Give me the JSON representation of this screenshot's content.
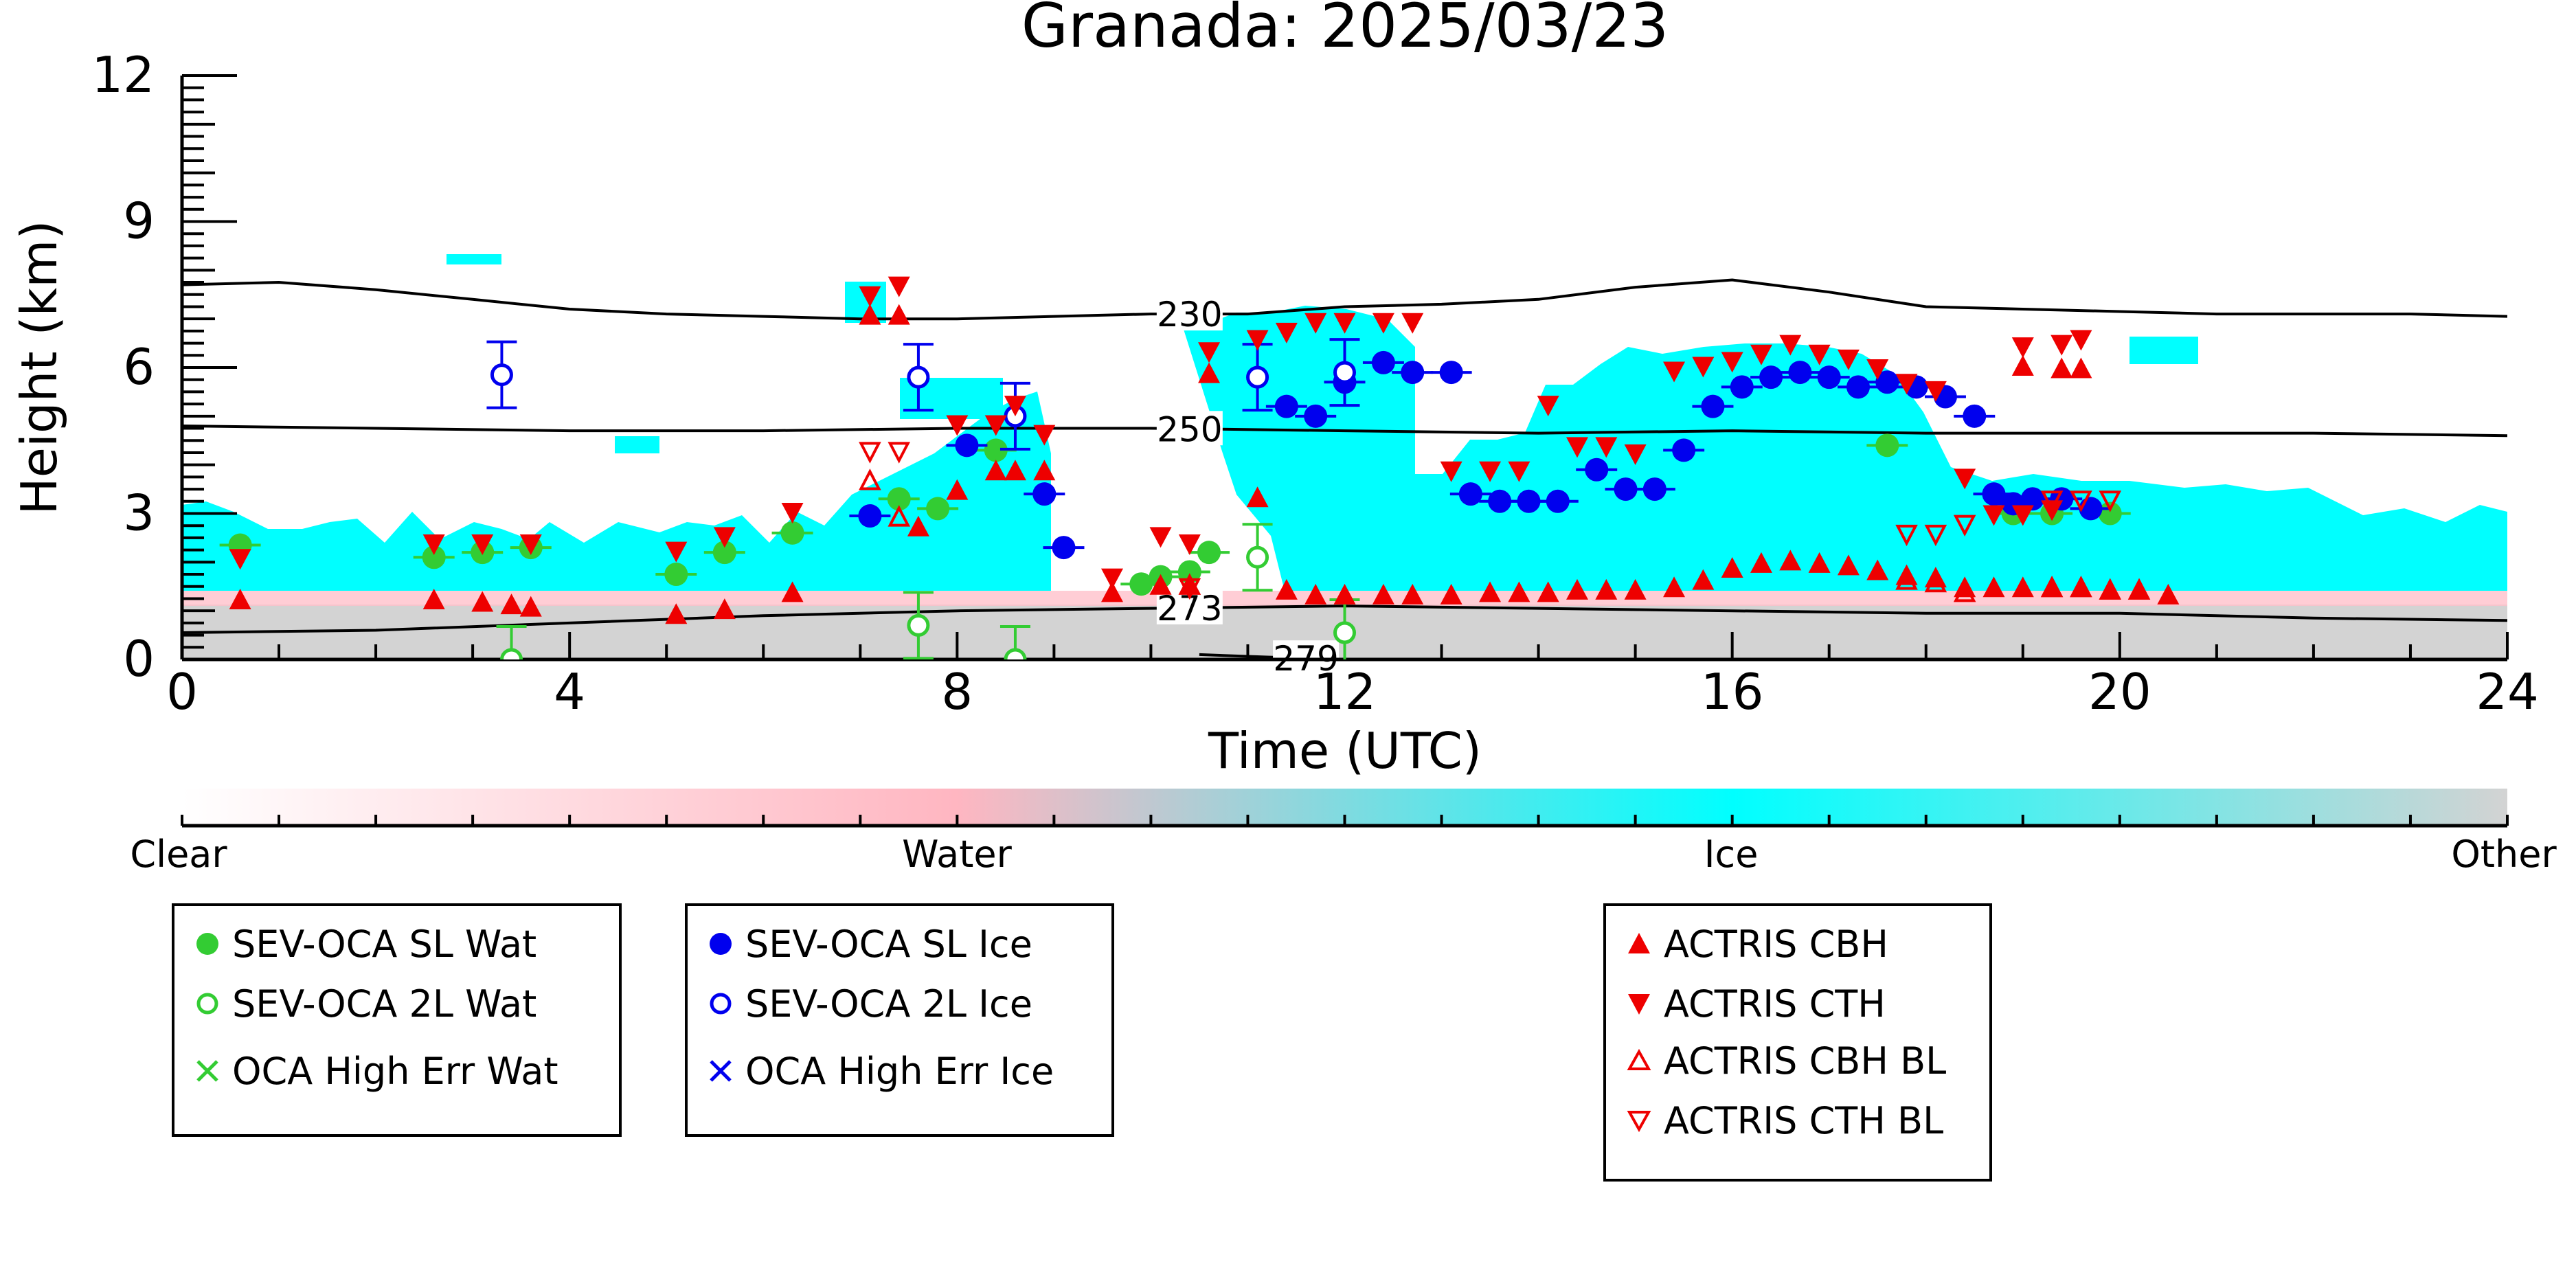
{
  "chart_data": {
    "type": "scatter",
    "title": "Granada: 2025/03/23",
    "xlabel": "Time (UTC)",
    "ylabel": "Height (km)",
    "xlim": [
      0,
      24
    ],
    "ylim": [
      0,
      12
    ],
    "x_ticks": [
      0,
      4,
      8,
      12,
      16,
      20,
      24
    ],
    "x_tick_labels": [
      "0",
      "4",
      "8",
      "12",
      "16",
      "20",
      "24"
    ],
    "y_ticks": [
      0,
      3,
      6,
      9,
      12
    ],
    "y_tick_labels": [
      "0",
      "3",
      "6",
      "9",
      "12"
    ],
    "grid": false,
    "colorbar": {
      "labels": [
        "Clear",
        "Water",
        "Ice",
        "Other"
      ],
      "colors": [
        "#ffffff",
        "#ffb6c1",
        "#00ffff",
        "#d3d3d3"
      ]
    },
    "contours": [
      {
        "label": "230",
        "label_x": 10.4,
        "points": [
          [
            0,
            7.7
          ],
          [
            1,
            7.75
          ],
          [
            2,
            7.6
          ],
          [
            3,
            7.4
          ],
          [
            4,
            7.2
          ],
          [
            5,
            7.1
          ],
          [
            6,
            7.05
          ],
          [
            7,
            7.0
          ],
          [
            8,
            7.0
          ],
          [
            9,
            7.05
          ],
          [
            10,
            7.1
          ],
          [
            11,
            7.1
          ],
          [
            12,
            7.25
          ],
          [
            13,
            7.3
          ],
          [
            14,
            7.4
          ],
          [
            15,
            7.65
          ],
          [
            16,
            7.8
          ],
          [
            17,
            7.55
          ],
          [
            18,
            7.25
          ],
          [
            19,
            7.2
          ],
          [
            20,
            7.15
          ],
          [
            21,
            7.1
          ],
          [
            22,
            7.1
          ],
          [
            23,
            7.1
          ],
          [
            24,
            7.05
          ]
        ]
      },
      {
        "label": "250",
        "label_x": 10.4,
        "points": [
          [
            0,
            4.8
          ],
          [
            2,
            4.75
          ],
          [
            4,
            4.7
          ],
          [
            6,
            4.7
          ],
          [
            8,
            4.75
          ],
          [
            10,
            4.75
          ],
          [
            12,
            4.7
          ],
          [
            14,
            4.65
          ],
          [
            16,
            4.7
          ],
          [
            18,
            4.65
          ],
          [
            20,
            4.65
          ],
          [
            22,
            4.65
          ],
          [
            24,
            4.6
          ]
        ]
      },
      {
        "label": "273",
        "label_x": 10.4,
        "points": [
          [
            0,
            0.55
          ],
          [
            2,
            0.6
          ],
          [
            4,
            0.75
          ],
          [
            6,
            0.9
          ],
          [
            8,
            1.0
          ],
          [
            10,
            1.05
          ],
          [
            12,
            1.1
          ],
          [
            14,
            1.05
          ],
          [
            16,
            1.0
          ],
          [
            18,
            0.95
          ],
          [
            20,
            0.95
          ],
          [
            22,
            0.85
          ],
          [
            24,
            0.8
          ]
        ]
      },
      {
        "label": "279",
        "label_x": 11.6,
        "points": [
          [
            10.5,
            0.1
          ],
          [
            11.2,
            0.05
          ],
          [
            12,
            0.0
          ]
        ]
      }
    ],
    "series": [
      {
        "name": "SEV-OCA SL Wat",
        "marker": "filled-circle",
        "color": "#33cc33",
        "points": [
          [
            0.6,
            2.35
          ],
          [
            2.6,
            2.1
          ],
          [
            3.1,
            2.2
          ],
          [
            3.6,
            2.3
          ],
          [
            5.1,
            1.75
          ],
          [
            5.6,
            2.2
          ],
          [
            6.3,
            2.6
          ],
          [
            7.4,
            3.3
          ],
          [
            7.8,
            3.1
          ],
          [
            8.4,
            4.3
          ],
          [
            9.9,
            1.55
          ],
          [
            10.1,
            1.7
          ],
          [
            10.4,
            1.8
          ],
          [
            10.6,
            2.2
          ],
          [
            17.6,
            4.4
          ],
          [
            18.9,
            3.0
          ],
          [
            19.3,
            3.0
          ],
          [
            19.9,
            3.0
          ]
        ]
      },
      {
        "name": "SEV-OCA 2L Wat",
        "marker": "open-circle",
        "color": "#33cc33",
        "points": [
          [
            3.4,
            0.0
          ],
          [
            7.6,
            0.7
          ],
          [
            8.6,
            0.0
          ],
          [
            11.1,
            2.1
          ],
          [
            12.0,
            0.55
          ]
        ]
      },
      {
        "name": "OCA High Err Wat",
        "marker": "x",
        "color": "#33cc33",
        "points": []
      },
      {
        "name": "SEV-OCA SL Ice",
        "marker": "filled-circle",
        "color": "#0000ee",
        "points": [
          [
            7.1,
            2.95
          ],
          [
            8.1,
            4.4
          ],
          [
            8.9,
            3.4
          ],
          [
            9.1,
            2.3
          ],
          [
            11.4,
            5.2
          ],
          [
            11.7,
            5.0
          ],
          [
            12.0,
            5.7
          ],
          [
            12.4,
            6.1
          ],
          [
            12.7,
            5.9
          ],
          [
            13.1,
            5.9
          ],
          [
            13.3,
            3.4
          ],
          [
            13.6,
            3.25
          ],
          [
            13.9,
            3.25
          ],
          [
            14.2,
            3.25
          ],
          [
            14.6,
            3.9
          ],
          [
            14.9,
            3.5
          ],
          [
            15.2,
            3.5
          ],
          [
            15.5,
            4.3
          ],
          [
            15.8,
            5.2
          ],
          [
            16.1,
            5.6
          ],
          [
            16.4,
            5.8
          ],
          [
            16.7,
            5.9
          ],
          [
            17.0,
            5.8
          ],
          [
            17.3,
            5.6
          ],
          [
            17.6,
            5.7
          ],
          [
            17.9,
            5.6
          ],
          [
            18.2,
            5.4
          ],
          [
            18.5,
            5.0
          ],
          [
            18.7,
            3.4
          ],
          [
            18.9,
            3.2
          ],
          [
            19.1,
            3.3
          ],
          [
            19.4,
            3.3
          ],
          [
            19.7,
            3.1
          ]
        ]
      },
      {
        "name": "SEV-OCA 2L Ice",
        "marker": "open-circle",
        "color": "#0000ee",
        "points": [
          [
            3.3,
            5.85
          ],
          [
            7.6,
            5.8
          ],
          [
            8.6,
            5.0
          ],
          [
            11.1,
            5.8
          ],
          [
            12.0,
            5.9
          ]
        ]
      },
      {
        "name": "OCA High Err Ice",
        "marker": "x",
        "color": "#0000ee",
        "points": []
      },
      {
        "name": "ACTRIS CBH",
        "marker": "triangle-up",
        "color": "#ee0000",
        "points": [
          [
            0.6,
            1.2
          ],
          [
            2.6,
            1.2
          ],
          [
            3.1,
            1.15
          ],
          [
            3.4,
            1.1
          ],
          [
            3.6,
            1.05
          ],
          [
            5.1,
            0.9
          ],
          [
            5.6,
            1.0
          ],
          [
            6.3,
            1.35
          ],
          [
            7.1,
            7.05
          ],
          [
            7.4,
            7.05
          ],
          [
            7.6,
            2.7
          ],
          [
            8.0,
            3.45
          ],
          [
            8.4,
            3.85
          ],
          [
            8.6,
            3.85
          ],
          [
            8.9,
            3.85
          ],
          [
            9.6,
            1.35
          ],
          [
            10.1,
            1.5
          ],
          [
            10.4,
            1.5
          ],
          [
            10.6,
            5.85
          ],
          [
            11.1,
            3.3
          ],
          [
            11.4,
            1.4
          ],
          [
            11.7,
            1.3
          ],
          [
            12.0,
            1.3
          ],
          [
            12.4,
            1.3
          ],
          [
            12.7,
            1.3
          ],
          [
            13.1,
            1.3
          ],
          [
            13.5,
            1.35
          ],
          [
            13.8,
            1.35
          ],
          [
            14.1,
            1.35
          ],
          [
            14.4,
            1.4
          ],
          [
            14.7,
            1.4
          ],
          [
            15.0,
            1.4
          ],
          [
            15.4,
            1.45
          ],
          [
            15.7,
            1.6
          ],
          [
            16.0,
            1.85
          ],
          [
            16.3,
            1.95
          ],
          [
            16.6,
            2.0
          ],
          [
            16.9,
            1.95
          ],
          [
            17.2,
            1.9
          ],
          [
            17.5,
            1.8
          ],
          [
            17.8,
            1.7
          ],
          [
            18.1,
            1.65
          ],
          [
            18.4,
            1.45
          ],
          [
            18.7,
            1.45
          ],
          [
            19.0,
            1.45
          ],
          [
            19.3,
            1.45
          ],
          [
            19.6,
            1.45
          ],
          [
            19.9,
            1.4
          ],
          [
            20.2,
            1.4
          ],
          [
            20.5,
            1.3
          ],
          [
            19.0,
            6.0
          ],
          [
            19.4,
            5.95
          ],
          [
            19.6,
            5.95
          ]
        ]
      },
      {
        "name": "ACTRIS CTH",
        "marker": "triangle-down",
        "color": "#ee0000",
        "points": [
          [
            0.6,
            2.1
          ],
          [
            2.6,
            2.4
          ],
          [
            3.1,
            2.4
          ],
          [
            3.6,
            2.4
          ],
          [
            5.1,
            2.25
          ],
          [
            5.6,
            2.55
          ],
          [
            6.3,
            3.05
          ],
          [
            7.1,
            7.5
          ],
          [
            7.4,
            7.7
          ],
          [
            8.0,
            4.85
          ],
          [
            8.4,
            4.85
          ],
          [
            8.6,
            5.25
          ],
          [
            8.9,
            4.65
          ],
          [
            9.6,
            1.7
          ],
          [
            10.1,
            2.55
          ],
          [
            10.4,
            2.4
          ],
          [
            10.6,
            6.35
          ],
          [
            11.1,
            6.6
          ],
          [
            11.4,
            6.75
          ],
          [
            11.7,
            6.95
          ],
          [
            12.0,
            6.95
          ],
          [
            12.4,
            6.95
          ],
          [
            12.7,
            6.95
          ],
          [
            13.1,
            3.9
          ],
          [
            13.5,
            3.9
          ],
          [
            13.8,
            3.9
          ],
          [
            14.1,
            5.25
          ],
          [
            14.4,
            4.4
          ],
          [
            14.7,
            4.4
          ],
          [
            15.0,
            4.25
          ],
          [
            15.4,
            5.95
          ],
          [
            15.7,
            6.05
          ],
          [
            16.0,
            6.15
          ],
          [
            16.3,
            6.3
          ],
          [
            16.6,
            6.5
          ],
          [
            16.9,
            6.3
          ],
          [
            17.2,
            6.2
          ],
          [
            17.5,
            6.0
          ],
          [
            17.8,
            5.7
          ],
          [
            18.1,
            5.55
          ],
          [
            18.4,
            3.75
          ],
          [
            18.7,
            3.0
          ],
          [
            19.0,
            3.0
          ],
          [
            19.3,
            3.1
          ],
          [
            19.0,
            6.45
          ],
          [
            19.4,
            6.5
          ],
          [
            19.6,
            6.6
          ]
        ]
      },
      {
        "name": "ACTRIS CBH BL",
        "marker": "open-triangle-up",
        "color": "#ee0000",
        "points": [
          [
            7.1,
            3.65
          ],
          [
            7.4,
            2.9
          ],
          [
            10.4,
            1.5
          ],
          [
            17.8,
            1.6
          ],
          [
            18.1,
            1.55
          ],
          [
            18.4,
            1.35
          ],
          [
            19.3,
            1.45
          ],
          [
            19.6,
            1.45
          ],
          [
            19.9,
            1.4
          ],
          [
            20.2,
            1.4
          ]
        ]
      },
      {
        "name": "ACTRIS CTH BL",
        "marker": "open-triangle-down",
        "color": "#ee0000",
        "points": [
          [
            7.1,
            4.3
          ],
          [
            7.4,
            4.3
          ],
          [
            10.4,
            1.5
          ],
          [
            17.8,
            2.6
          ],
          [
            18.1,
            2.6
          ],
          [
            18.4,
            2.8
          ],
          [
            19.3,
            3.3
          ],
          [
            19.6,
            3.3
          ],
          [
            19.9,
            3.3
          ]
        ]
      }
    ]
  }
}
